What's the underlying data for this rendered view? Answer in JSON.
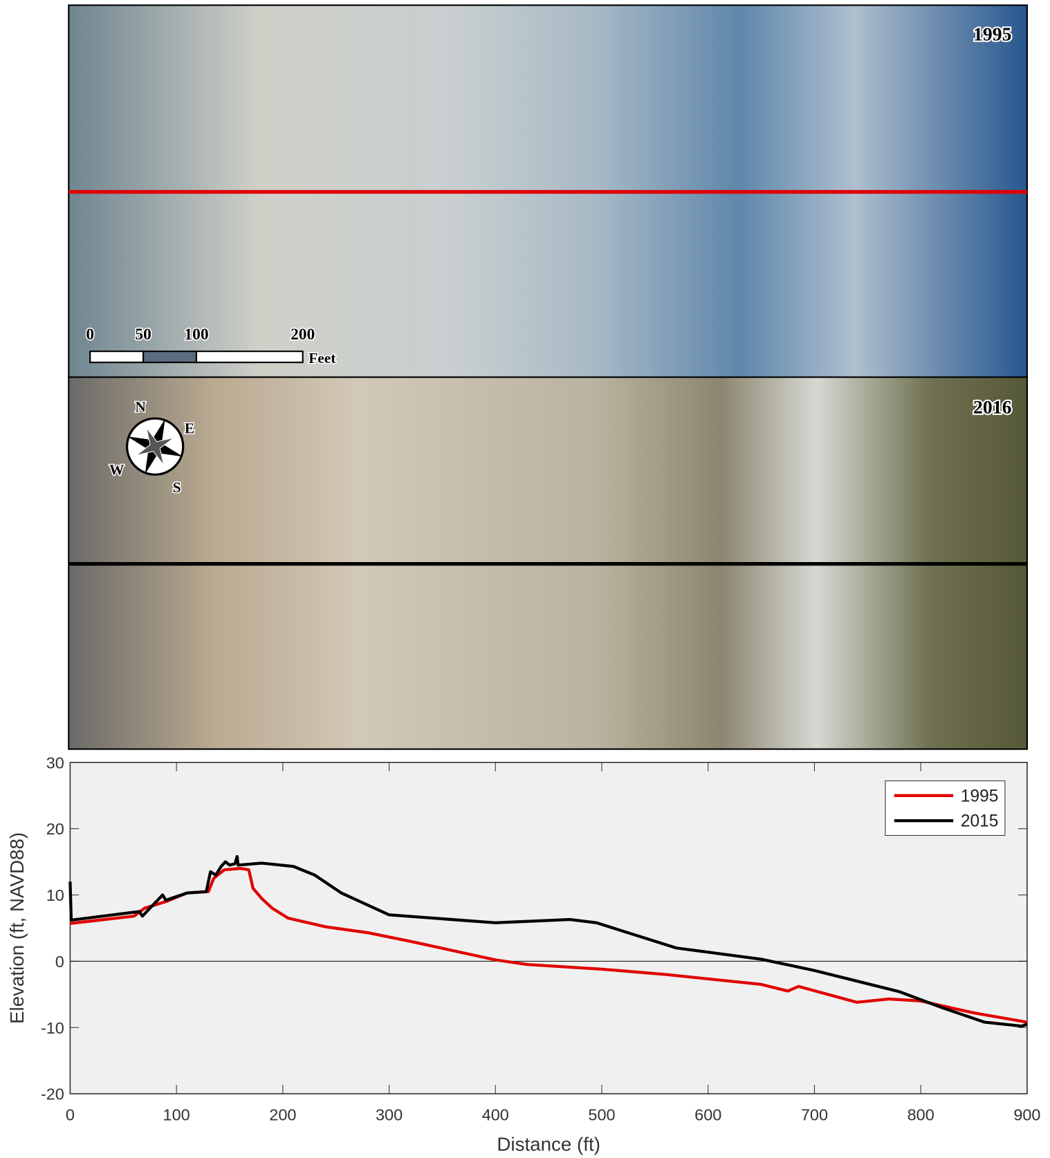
{
  "images": [
    {
      "label": "1995"
    },
    {
      "label": "2016"
    }
  ],
  "scale_bar": {
    "ticks": [
      0,
      50,
      100,
      200
    ],
    "unit": "Feet"
  },
  "compass": {
    "north": "N",
    "east": "E",
    "south": "S",
    "west": "W"
  },
  "chart_data": {
    "type": "line",
    "xlabel": "Distance (ft)",
    "ylabel": "Elevation (ft, NAVD88)",
    "xlim": [
      0,
      900
    ],
    "ylim": [
      -20,
      30
    ],
    "xticks": [
      0,
      100,
      200,
      300,
      400,
      500,
      600,
      700,
      800,
      900
    ],
    "yticks": [
      -20,
      -10,
      0,
      10,
      20,
      30
    ],
    "legend": "upper right",
    "series": [
      {
        "name": "1995",
        "color": "#e00000",
        "x": [
          0,
          60,
          70,
          90,
          110,
          130,
          135,
          145,
          160,
          168,
          172,
          180,
          190,
          205,
          240,
          280,
          320,
          360,
          400,
          430,
          500,
          560,
          650,
          675,
          685,
          740,
          770,
          800,
          850,
          900
        ],
        "values": [
          5.7,
          6.8,
          8,
          9,
          10.3,
          10.5,
          12.5,
          13.8,
          14,
          13.8,
          11,
          9.5,
          8,
          6.5,
          5.2,
          4.3,
          3,
          1.6,
          0.2,
          -0.5,
          -1.2,
          -2,
          -3.5,
          -4.5,
          -3.8,
          -6.2,
          -5.7,
          -6,
          -7.8,
          -9.2
        ]
      },
      {
        "name": "2015",
        "color": "#000000",
        "x": [
          0,
          1,
          65,
          68,
          75,
          87,
          90,
          110,
          128,
          132,
          137,
          142,
          146,
          150,
          155,
          157,
          158,
          180,
          210,
          230,
          255,
          300,
          400,
          470,
          495,
          570,
          650,
          700,
          740,
          780,
          820,
          860,
          895,
          900
        ],
        "values": [
          12,
          6.2,
          7.5,
          6.8,
          8,
          10,
          9.2,
          10.3,
          10.5,
          13.5,
          13,
          14.3,
          15,
          14.5,
          14.7,
          15.8,
          14.5,
          14.8,
          14.3,
          13,
          10.3,
          7,
          5.8,
          6.3,
          5.8,
          2,
          0.3,
          -1.4,
          -3,
          -4.6,
          -7,
          -9.2,
          -9.8,
          -9.5
        ]
      }
    ]
  }
}
